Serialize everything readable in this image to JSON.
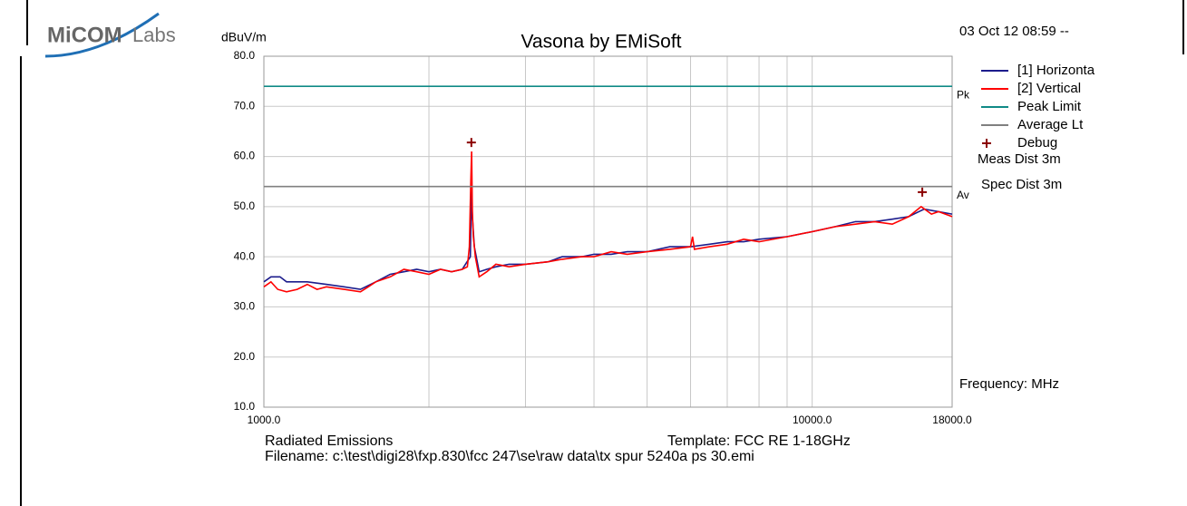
{
  "logo": {
    "brand": "MiCOM",
    "suffix": "Labs"
  },
  "chart_data": {
    "type": "line",
    "title": "Vasona by EMiSoft",
    "timestamp": "03 Oct 12 08:59 --",
    "y_label": "dBuV/m",
    "x_label": "Frequency: MHz",
    "x_scale": "log",
    "xlim": [
      1000,
      18000
    ],
    "ylim": [
      10,
      80
    ],
    "xticks": [
      {
        "value": 1000,
        "label": "1000.0"
      },
      {
        "value": 10000,
        "label": "10000.0"
      },
      {
        "value": 18000,
        "label": "18000.0"
      }
    ],
    "xminor": [
      2000,
      3000,
      4000,
      5000,
      6000,
      7000,
      8000,
      9000
    ],
    "yticks": [
      {
        "value": 80,
        "label": "80.0"
      },
      {
        "value": 70,
        "label": "70.0"
      },
      {
        "value": 60,
        "label": "60.0"
      },
      {
        "value": 50,
        "label": "50.0"
      },
      {
        "value": 40,
        "label": "40.0"
      },
      {
        "value": 30,
        "label": "30.0"
      },
      {
        "value": 20,
        "label": "20.0"
      },
      {
        "value": 10,
        "label": "10.0"
      }
    ],
    "grid": true,
    "annotations": [
      "Meas Dist 3m",
      "Spec Dist 3m"
    ],
    "footer": {
      "test": "Radiated Emissions",
      "template": "Template: FCC RE 1-18GHz",
      "filename": "Filename: c:\\test\\digi28\\fxp.830\\fcc 247\\se\\raw data\\tx spur 5240a ps 30.emi"
    },
    "series": [
      {
        "name": "[1] Horizonta",
        "color": "#1c1c8c",
        "marker": "line",
        "x": [
          1000,
          1030,
          1070,
          1100,
          1200,
          1300,
          1400,
          1500,
          1600,
          1700,
          1800,
          1900,
          2000,
          2100,
          2200,
          2300,
          2380,
          2393,
          2400,
          2420,
          2470,
          2550,
          2650,
          2800,
          3000,
          3300,
          3500,
          3800,
          4000,
          4300,
          4600,
          5000,
          5500,
          6000,
          6500,
          7000,
          7500,
          8000,
          9000,
          10000,
          11000,
          12000,
          13000,
          14000,
          15000,
          16000,
          17000,
          18000
        ],
        "values": [
          35,
          36,
          36,
          35,
          35,
          34.5,
          34,
          33.5,
          35,
          36.5,
          37,
          37.5,
          37,
          37.5,
          37,
          37.5,
          40,
          55,
          48,
          42,
          37,
          37.5,
          38,
          38.5,
          38.5,
          39,
          40,
          40,
          40.5,
          40.5,
          41,
          41,
          42,
          42,
          42.5,
          43,
          43,
          43.5,
          44,
          45,
          46,
          47,
          47,
          47.5,
          48,
          49.5,
          49,
          48.5
        ]
      },
      {
        "name": "[2] Vertical",
        "color": "#ff0000",
        "marker": "line",
        "x": [
          1000,
          1030,
          1060,
          1100,
          1150,
          1200,
          1250,
          1300,
          1400,
          1500,
          1550,
          1600,
          1700,
          1800,
          1900,
          2000,
          2100,
          2200,
          2300,
          2350,
          2370,
          2385,
          2393,
          2400,
          2410,
          2430,
          2470,
          2550,
          2650,
          2800,
          3000,
          3300,
          3500,
          3800,
          4000,
          4300,
          4600,
          5000,
          5500,
          6000,
          6050,
          6100,
          6500,
          7000,
          7500,
          8000,
          9000,
          10000,
          11000,
          12000,
          13000,
          14000,
          15000,
          15800,
          16500,
          17000,
          18000
        ],
        "values": [
          34,
          35,
          33.5,
          33,
          33.5,
          34.5,
          33.5,
          34,
          33.5,
          33,
          34,
          35,
          36,
          37.5,
          37,
          36.5,
          37.5,
          37,
          37.5,
          38,
          42,
          55,
          61,
          49,
          44,
          40,
          36,
          37,
          38.5,
          38,
          38.5,
          39,
          39.5,
          40,
          40,
          41,
          40.5,
          41,
          41.5,
          42,
          44,
          41.5,
          42,
          42.5,
          43.5,
          43,
          44,
          45,
          46,
          46.5,
          47,
          46.5,
          48,
          50,
          48.5,
          49,
          48
        ]
      },
      {
        "name": "Peak Limit",
        "color": "#108a86",
        "marker": "line",
        "tag": "Pk",
        "x": [
          1000,
          18000
        ],
        "values": [
          74,
          74
        ]
      },
      {
        "name": "Average Lt",
        "color": "#808080",
        "marker": "line",
        "tag": "Av",
        "x": [
          1000,
          18000
        ],
        "values": [
          54,
          54
        ]
      },
      {
        "name": "Debug",
        "color": "#8b0000",
        "marker": "plus",
        "x": [
          2390,
          15880
        ],
        "values": [
          62.8,
          52.9
        ]
      }
    ]
  }
}
